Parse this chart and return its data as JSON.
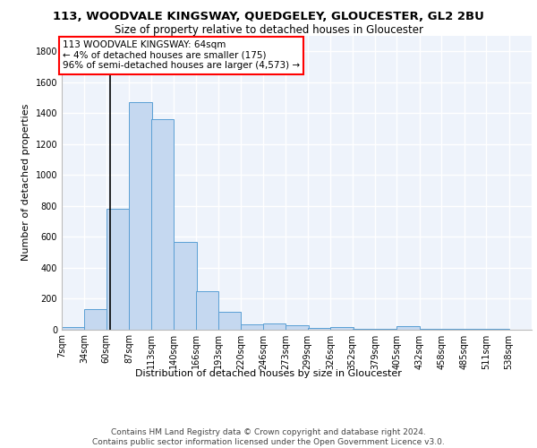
{
  "title": "113, WOODVALE KINGSWAY, QUEDGELEY, GLOUCESTER, GL2 2BU",
  "subtitle": "Size of property relative to detached houses in Gloucester",
  "xlabel": "Distribution of detached houses by size in Gloucester",
  "ylabel": "Number of detached properties",
  "bins": [
    7,
    34,
    60,
    87,
    113,
    140,
    166,
    193,
    220,
    246,
    273,
    299,
    326,
    352,
    379,
    405,
    432,
    458,
    485,
    511,
    538
  ],
  "bin_labels": [
    "7sqm",
    "34sqm",
    "60sqm",
    "87sqm",
    "113sqm",
    "140sqm",
    "166sqm",
    "193sqm",
    "220sqm",
    "246sqm",
    "273sqm",
    "299sqm",
    "326sqm",
    "352sqm",
    "379sqm",
    "405sqm",
    "432sqm",
    "458sqm",
    "485sqm",
    "511sqm",
    "538sqm"
  ],
  "values": [
    15,
    130,
    780,
    1470,
    1360,
    565,
    245,
    115,
    30,
    35,
    25,
    10,
    15,
    5,
    2,
    20,
    2,
    1,
    1,
    1,
    0
  ],
  "bar_color": "#c5d8f0",
  "bar_edge_color": "#5a9fd4",
  "vline_x": 64,
  "vline_color": "black",
  "annotation_text": "113 WOODVALE KINGSWAY: 64sqm\n← 4% of detached houses are smaller (175)\n96% of semi-detached houses are larger (4,573) →",
  "annotation_box_color": "white",
  "annotation_box_edge_color": "red",
  "ylim": [
    0,
    1900
  ],
  "yticks": [
    0,
    200,
    400,
    600,
    800,
    1000,
    1200,
    1400,
    1600,
    1800
  ],
  "background_color": "#eef3fb",
  "grid_color": "white",
  "footer_line1": "Contains HM Land Registry data © Crown copyright and database right 2024.",
  "footer_line2": "Contains public sector information licensed under the Open Government Licence v3.0.",
  "title_fontsize": 9.5,
  "subtitle_fontsize": 8.5,
  "label_fontsize": 8,
  "tick_fontsize": 7,
  "footer_fontsize": 6.5,
  "annot_fontsize": 7.5
}
